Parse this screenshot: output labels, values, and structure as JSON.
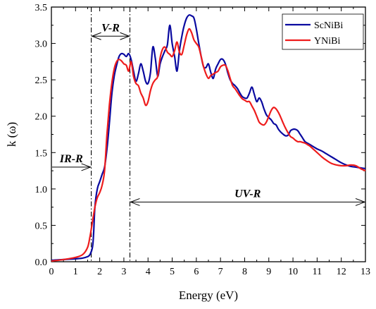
{
  "chart_data": {
    "type": "line",
    "xlabel": "Energy (eV)",
    "ylabel": "k (ω)",
    "xlim": [
      0,
      13
    ],
    "ylim": [
      0,
      3.5
    ],
    "xticks": [
      "0",
      "1",
      "2",
      "3",
      "4",
      "5",
      "6",
      "7",
      "8",
      "9",
      "10",
      "11",
      "12",
      "13"
    ],
    "yticks": [
      "0.0",
      "0.5",
      "1.0",
      "1.5",
      "2.0",
      "2.5",
      "3.0",
      "3.5"
    ],
    "legend_position": "top-right",
    "grid": false,
    "series": [
      {
        "name": "ScNiBi",
        "color": "#0a0aa0",
        "x": [
          0,
          0.5,
          1,
          1.3,
          1.5,
          1.6,
          1.7,
          1.75,
          1.8,
          1.9,
          2.0,
          2.1,
          2.2,
          2.3,
          2.4,
          2.5,
          2.6,
          2.7,
          2.8,
          2.9,
          3.0,
          3.1,
          3.2,
          3.3,
          3.4,
          3.5,
          3.6,
          3.7,
          3.8,
          3.9,
          4.0,
          4.1,
          4.2,
          4.3,
          4.4,
          4.5,
          4.6,
          4.7,
          4.8,
          4.9,
          5.0,
          5.1,
          5.2,
          5.3,
          5.4,
          5.5,
          5.6,
          5.7,
          5.8,
          5.9,
          6.0,
          6.1,
          6.2,
          6.3,
          6.4,
          6.5,
          6.6,
          6.7,
          6.8,
          6.9,
          7.0,
          7.1,
          7.2,
          7.3,
          7.4,
          7.5,
          7.6,
          7.7,
          7.8,
          7.9,
          8.0,
          8.1,
          8.2,
          8.3,
          8.4,
          8.5,
          8.6,
          8.7,
          8.8,
          8.9,
          9.0,
          9.1,
          9.2,
          9.3,
          9.4,
          9.5,
          9.6,
          9.7,
          9.8,
          9.9,
          10.0,
          10.1,
          10.2,
          10.3,
          10.4,
          10.5,
          10.6,
          10.7,
          10.8,
          10.9,
          11.0,
          11.2,
          11.4,
          11.6,
          11.8,
          12.0,
          12.2,
          12.4,
          12.6,
          12.8,
          13.0
        ],
        "y": [
          0.02,
          0.03,
          0.04,
          0.05,
          0.07,
          0.1,
          0.2,
          0.4,
          0.75,
          1.0,
          1.1,
          1.2,
          1.3,
          1.55,
          1.9,
          2.3,
          2.55,
          2.7,
          2.82,
          2.86,
          2.85,
          2.82,
          2.86,
          2.78,
          2.62,
          2.48,
          2.58,
          2.72,
          2.62,
          2.48,
          2.45,
          2.6,
          2.95,
          2.8,
          2.55,
          2.72,
          2.82,
          2.9,
          2.98,
          3.25,
          3.0,
          2.82,
          2.62,
          2.9,
          3.1,
          3.25,
          3.35,
          3.39,
          3.38,
          3.35,
          3.2,
          3.0,
          2.82,
          2.68,
          2.67,
          2.72,
          2.6,
          2.52,
          2.65,
          2.72,
          2.78,
          2.78,
          2.72,
          2.6,
          2.5,
          2.45,
          2.42,
          2.38,
          2.32,
          2.27,
          2.25,
          2.25,
          2.32,
          2.4,
          2.3,
          2.2,
          2.25,
          2.2,
          2.1,
          2.02,
          1.98,
          1.95,
          1.9,
          1.88,
          1.82,
          1.78,
          1.75,
          1.73,
          1.74,
          1.8,
          1.82,
          1.82,
          1.8,
          1.75,
          1.7,
          1.65,
          1.63,
          1.61,
          1.59,
          1.57,
          1.55,
          1.52,
          1.48,
          1.44,
          1.4,
          1.36,
          1.33,
          1.31,
          1.3,
          1.29,
          1.28
        ]
      },
      {
        "name": "YNiBi",
        "color": "#ee1c1c",
        "x": [
          0,
          0.5,
          1,
          1.3,
          1.5,
          1.6,
          1.7,
          1.8,
          1.9,
          2.0,
          2.1,
          2.2,
          2.3,
          2.4,
          2.5,
          2.6,
          2.7,
          2.8,
          2.9,
          3.0,
          3.1,
          3.2,
          3.3,
          3.4,
          3.5,
          3.6,
          3.7,
          3.8,
          3.9,
          4.0,
          4.1,
          4.2,
          4.3,
          4.4,
          4.5,
          4.6,
          4.7,
          4.8,
          4.9,
          5.0,
          5.1,
          5.2,
          5.3,
          5.4,
          5.5,
          5.6,
          5.7,
          5.8,
          5.9,
          6.0,
          6.1,
          6.2,
          6.3,
          6.4,
          6.5,
          6.6,
          6.7,
          6.8,
          6.9,
          7.0,
          7.1,
          7.2,
          7.3,
          7.4,
          7.5,
          7.6,
          7.7,
          7.8,
          7.9,
          8.0,
          8.1,
          8.2,
          8.3,
          8.4,
          8.5,
          8.6,
          8.7,
          8.8,
          8.9,
          9.0,
          9.1,
          9.2,
          9.3,
          9.4,
          9.5,
          9.6,
          9.7,
          9.8,
          9.9,
          10.0,
          10.1,
          10.2,
          10.3,
          10.4,
          10.5,
          10.6,
          10.7,
          10.8,
          10.9,
          11.0,
          11.2,
          11.4,
          11.6,
          11.8,
          12.0,
          12.2,
          12.4,
          12.6,
          12.8,
          13.0
        ],
        "y": [
          0.01,
          0.03,
          0.06,
          0.1,
          0.2,
          0.35,
          0.55,
          0.75,
          0.88,
          0.95,
          1.05,
          1.25,
          1.75,
          2.15,
          2.45,
          2.65,
          2.75,
          2.78,
          2.76,
          2.72,
          2.7,
          2.62,
          2.75,
          2.55,
          2.45,
          2.42,
          2.32,
          2.25,
          2.15,
          2.2,
          2.35,
          2.45,
          2.5,
          2.55,
          2.8,
          2.92,
          2.95,
          2.88,
          2.85,
          2.82,
          2.9,
          3.02,
          2.88,
          2.85,
          2.98,
          3.12,
          3.2,
          3.15,
          3.05,
          3.0,
          2.95,
          2.82,
          2.68,
          2.58,
          2.52,
          2.56,
          2.58,
          2.6,
          2.62,
          2.68,
          2.7,
          2.7,
          2.63,
          2.52,
          2.42,
          2.38,
          2.33,
          2.28,
          2.24,
          2.22,
          2.2,
          2.2,
          2.14,
          2.08,
          2.0,
          1.92,
          1.89,
          1.88,
          1.92,
          2.0,
          2.08,
          2.12,
          2.1,
          2.05,
          1.98,
          1.9,
          1.83,
          1.77,
          1.72,
          1.7,
          1.67,
          1.65,
          1.65,
          1.64,
          1.63,
          1.61,
          1.59,
          1.56,
          1.53,
          1.5,
          1.44,
          1.39,
          1.35,
          1.33,
          1.32,
          1.32,
          1.33,
          1.32,
          1.28,
          1.25
        ]
      }
    ],
    "vlines_x": [
      1.65,
      3.25
    ],
    "regions": [
      {
        "label": "IR-R",
        "x0": 0,
        "x1": 1.65,
        "y": 1.3,
        "arrows": "right"
      },
      {
        "label": "V-R",
        "x0": 1.65,
        "x1": 3.25,
        "y": 3.1,
        "arrows": "both"
      },
      {
        "label": "UV-R",
        "x0": 3.25,
        "x1": 13,
        "y": 0.82,
        "arrows": "both"
      }
    ]
  }
}
